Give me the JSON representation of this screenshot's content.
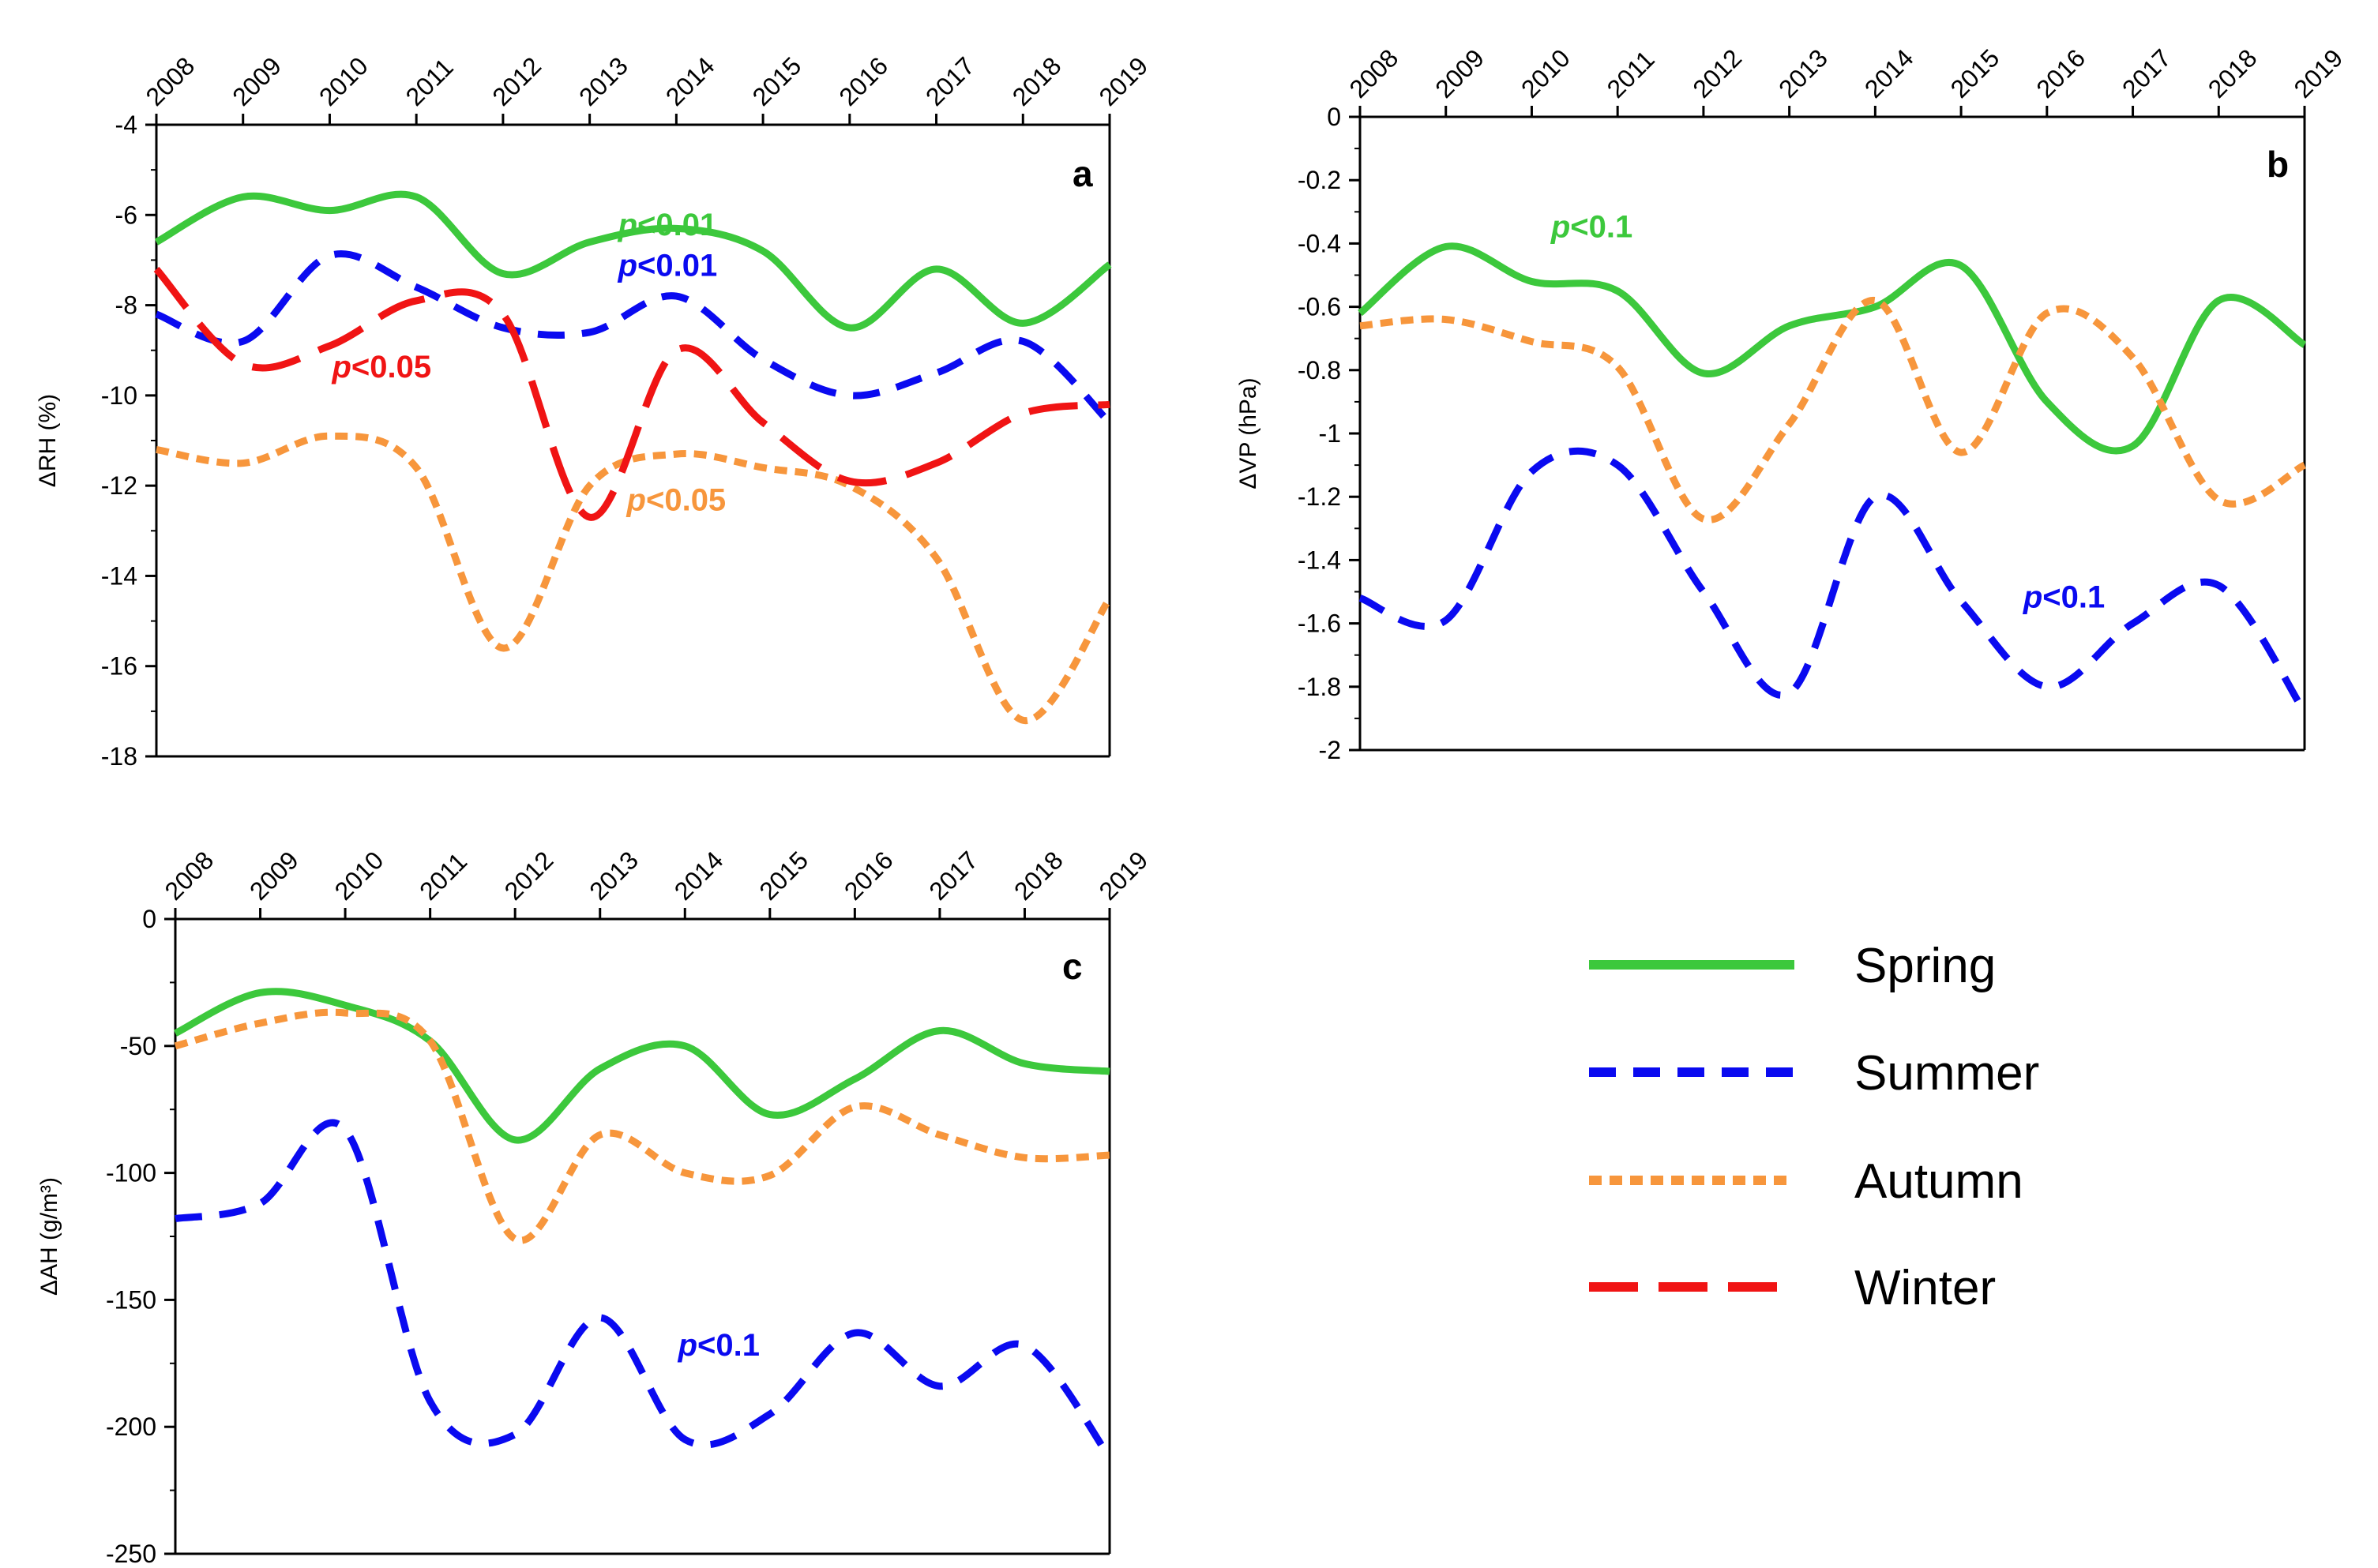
{
  "colors": {
    "Spring": "#3cc83c",
    "Summer": "#0a0af0",
    "Autumn": "#f7963c",
    "Winter": "#f01414"
  },
  "dash": {
    "Spring": "",
    "Summer": "34,22",
    "Autumn": "16,10",
    "Winter": "62,26"
  },
  "legend": [
    {
      "season": "Spring",
      "label": "Spring"
    },
    {
      "season": "Summer",
      "label": "Summer"
    },
    {
      "season": "Autumn",
      "label": "Autumn"
    },
    {
      "season": "Winter",
      "label": "Winter"
    }
  ],
  "chart_data": [
    {
      "panel": "a",
      "type": "line",
      "ylabel": "ΔRH (%)",
      "ylim": [
        -18,
        -4
      ],
      "ystep": 2,
      "categories": [
        "2008",
        "2009",
        "2010",
        "2011",
        "2012",
        "2013",
        "2014",
        "2015",
        "2016",
        "2017",
        "2018",
        "2019"
      ],
      "series": [
        {
          "name": "Spring",
          "values": [
            -6.6,
            -5.6,
            -5.9,
            -5.6,
            -7.3,
            -6.6,
            -6.3,
            -6.8,
            -8.5,
            -7.2,
            -8.4,
            -7.1
          ]
        },
        {
          "name": "Summer",
          "values": [
            -8.2,
            -8.8,
            -6.9,
            -7.6,
            -8.5,
            -8.6,
            -7.8,
            -9.2,
            -10.0,
            -9.5,
            -8.8,
            -10.6
          ]
        },
        {
          "name": "Autumn",
          "values": [
            -11.2,
            -11.5,
            -10.9,
            -11.6,
            -15.6,
            -12.0,
            -11.3,
            -11.6,
            -12.0,
            -13.6,
            -17.2,
            -14.5
          ]
        },
        {
          "name": "Winter",
          "values": [
            -7.2,
            -9.3,
            -8.9,
            -7.9,
            -8.2,
            -12.7,
            -9.0,
            -10.6,
            -11.9,
            -11.5,
            -10.4,
            -10.2
          ]
        }
      ],
      "annotations": [
        {
          "text": "p<0.01",
          "season": "Spring",
          "x": 5.9,
          "y": -6.45
        },
        {
          "text": "p<0.01",
          "season": "Summer",
          "x": 5.9,
          "y": -7.35
        },
        {
          "text": "p<0.05",
          "season": "Winter",
          "x": 2.6,
          "y": -9.6
        },
        {
          "text": "p<0.05",
          "season": "Autumn",
          "x": 6.0,
          "y": -12.55
        }
      ]
    },
    {
      "panel": "b",
      "type": "line",
      "ylabel": "ΔVP (hPa)",
      "ylim": [
        -2,
        0
      ],
      "ystep": 0.2,
      "categories": [
        "2008",
        "2009",
        "2010",
        "2011",
        "2012",
        "2013",
        "2014",
        "2015",
        "2016",
        "2017",
        "2018",
        "2019"
      ],
      "series": [
        {
          "name": "Spring",
          "values": [
            -0.62,
            -0.41,
            -0.52,
            -0.55,
            -0.81,
            -0.66,
            -0.6,
            -0.47,
            -0.9,
            -1.04,
            -0.58,
            -0.72
          ]
        },
        {
          "name": "Summer",
          "values": [
            -1.52,
            -1.59,
            -1.12,
            -1.1,
            -1.5,
            -1.82,
            -1.2,
            -1.53,
            -1.8,
            -1.6,
            -1.48,
            -1.88
          ]
        },
        {
          "name": "Autumn",
          "values": [
            -0.66,
            -0.64,
            -0.71,
            -0.79,
            -1.27,
            -0.97,
            -0.58,
            -1.06,
            -0.62,
            -0.76,
            -1.21,
            -1.1
          ]
        }
      ],
      "annotations": [
        {
          "text": "p<0.1",
          "season": "Spring",
          "x": 2.7,
          "y": -0.38
        },
        {
          "text": "p<0.1",
          "season": "Summer",
          "x": 8.2,
          "y": -1.55
        }
      ]
    },
    {
      "panel": "c",
      "type": "line",
      "ylabel": "ΔAH (g/m³)",
      "ylim": [
        -250,
        0
      ],
      "ystep": 50,
      "categories": [
        "2008",
        "2009",
        "2010",
        "2011",
        "2012",
        "2013",
        "2014",
        "2015",
        "2016",
        "2017",
        "2018",
        "2019"
      ],
      "series": [
        {
          "name": "Spring",
          "values": [
            -45,
            -29,
            -34,
            -48,
            -87,
            -59,
            -50,
            -77,
            -63,
            -44,
            -57,
            -60
          ]
        },
        {
          "name": "Summer",
          "values": [
            -118,
            -112,
            -83,
            -190,
            -203,
            -157,
            -205,
            -195,
            -163,
            -184,
            -168,
            -212
          ]
        },
        {
          "name": "Autumn",
          "values": [
            -50,
            -41,
            -37,
            -48,
            -126,
            -85,
            -100,
            -101,
            -74,
            -85,
            -94,
            -93
          ]
        }
      ],
      "annotations": [
        {
          "text": "p<0.1",
          "season": "Summer",
          "x": 6.4,
          "y": -172
        }
      ]
    }
  ]
}
